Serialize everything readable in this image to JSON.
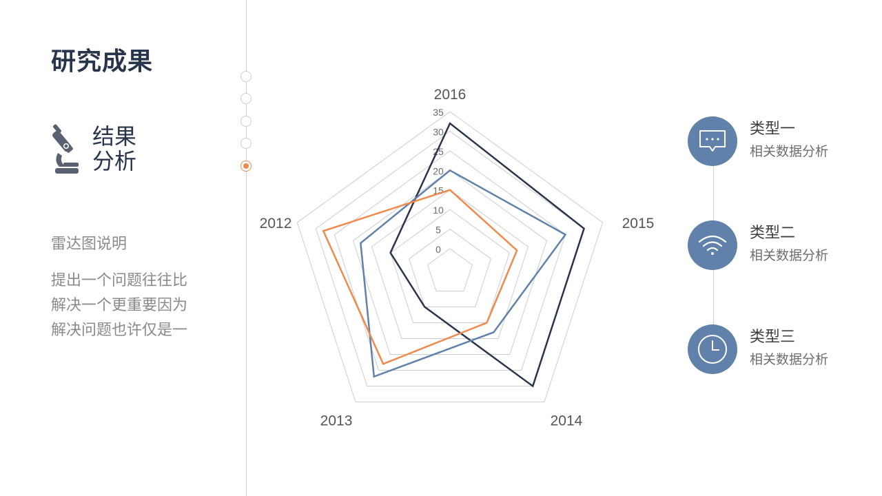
{
  "page": {
    "title": "研究成果",
    "section_title": "结果分析",
    "section_title_line1": "结果",
    "section_title_line2": "分析",
    "desc_title": "雷达图说明",
    "desc_body_lines": [
      "提出一个问题往往比",
      "解决一个更重要因为",
      "解决问题也许仅是一"
    ]
  },
  "progress": {
    "total_steps": 5,
    "active_step": 5
  },
  "legend": [
    {
      "label": "类型一",
      "sub": "相关数据分析",
      "icon": "chat-bubble-icon"
    },
    {
      "label": "类型二",
      "sub": "相关数据分析",
      "icon": "wifi-icon"
    },
    {
      "label": "类型三",
      "sub": "相关数据分析",
      "icon": "clock-icon"
    }
  ],
  "colors": {
    "navy": "#27344a",
    "blue": "#5f81aa",
    "orange": "#ef8a4b",
    "grid": "#cccccc",
    "text_gray": "#8a8a8a"
  },
  "chart_data": {
    "type": "radar",
    "axes": [
      "2016",
      "2015",
      "2014",
      "2013",
      "2012"
    ],
    "rmin": 0,
    "rmax": 35,
    "ticks": [
      0,
      5,
      10,
      15,
      20,
      25,
      30,
      35
    ],
    "series": [
      {
        "values": [
          32,
          30,
          30,
          5,
          10
        ],
        "color": "#27344a"
      },
      {
        "values": [
          20,
          25,
          13,
          27,
          18
        ],
        "color": "#5f81aa"
      },
      {
        "values": [
          15,
          12,
          10,
          23,
          28
        ],
        "color": "#ef8a4b"
      }
    ]
  }
}
